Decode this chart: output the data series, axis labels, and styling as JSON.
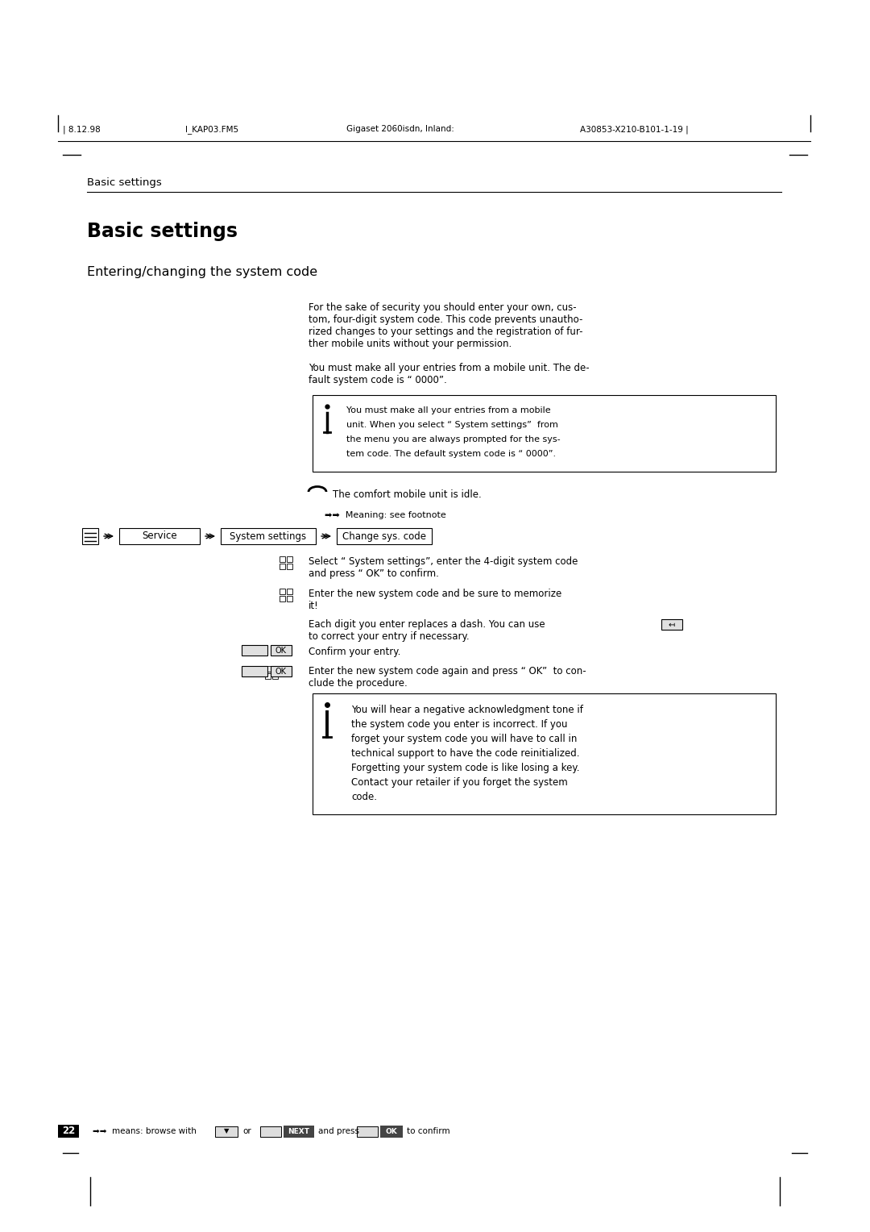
{
  "bg_color": "#ffffff",
  "text_color": "#000000",
  "header_left": "| 8.12.98",
  "header_center_left": "I_KAP03.FM5",
  "header_center": "Gigaset 2060isdn, Inland:",
  "header_right": "A30853-X210-B101-1-19 |",
  "section_header": "Basic settings",
  "page_title": "Basic settings",
  "subsection": "Entering/changing the system code",
  "para1_line1": "For the sake of security you should enter your own, cus-",
  "para1_line2": "tom, four-digit system code. This code prevents unautho-",
  "para1_line3": "rized changes to your settings and the registration of fur-",
  "para1_line4": "ther mobile units without your permission.",
  "para2_line1": "You must make all your entries from a mobile unit. The de-",
  "para2_line2": "fault system code is “ 0000”.",
  "note_line1": "You must make all your entries from a mobile",
  "note_line2": "unit. When you select “ System settings”  from",
  "note_line3": "the menu you are always prompted for the sys-",
  "note_line4": "tem code. The default system code is “ 0000”.",
  "idle_text": "The comfort mobile unit is idle.",
  "footnote_text": "➡➡  Meaning: see footnote",
  "nav_service": "Service",
  "nav_system": "System settings",
  "nav_change": "Change sys. code",
  "step1_line1": "Select “ System settings”, enter the 4-digit system code",
  "step1_line2": "and press “ OK” to confirm.",
  "step2_line1": "Enter the new system code and be sure to memorize",
  "step2_line2": "it!",
  "step3_line1": "Each digit you enter replaces a dash. You can use",
  "step3_line2": "to correct your entry if necessary.",
  "confirm_text": "Confirm your entry.",
  "step4_line1": "Enter the new system code again and press “ OK”  to con-",
  "step4_line2": "clude the procedure.",
  "warn_line1": "You will hear a negative acknowledgment tone if",
  "warn_line2": "the system code you enter is incorrect. If you",
  "warn_line3": "forget your system code you will have to call in",
  "warn_line4": "technical support to have the code reinitialized.",
  "warn_line5": "Forgetting your system code is like losing a key.",
  "warn_line6": "Contact your retailer if you forget the system",
  "warn_line7": "code.",
  "footer_page": "22",
  "footer_pre": "➡➡  means: browse with",
  "footer_or": "or",
  "footer_and": "and press",
  "footer_confirm": "to confirm",
  "footer_next_label": "NEXT",
  "footer_ok_label": "OK",
  "footer_down_label": "▼"
}
